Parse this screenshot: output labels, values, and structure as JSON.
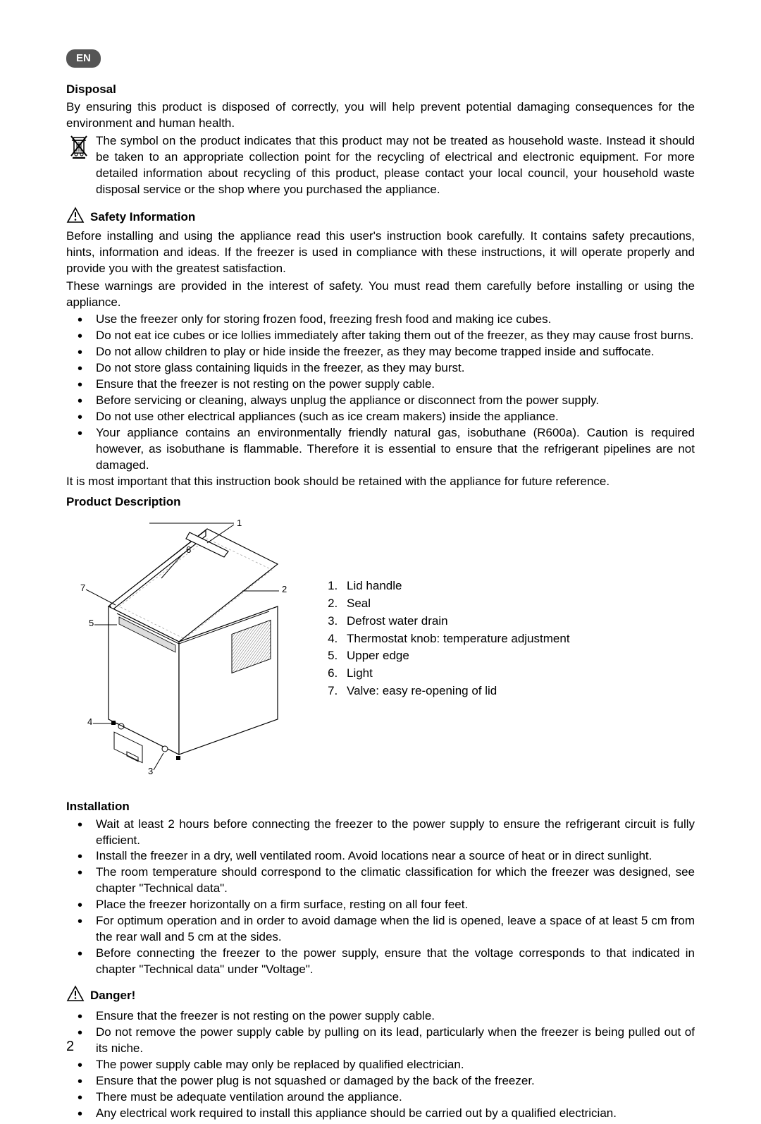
{
  "lang_badge": "EN",
  "disposal": {
    "title": "Disposal",
    "p1": "By ensuring this product is disposed of correctly, you will help prevent potential damaging consequences for the environment and human health.",
    "p2": "The symbol on the product indicates that this product may not be treated as household waste. Instead it should be taken to an appropriate collection point for the recycling of electrical and electronic equipment. For more detailed information about recycling of this product, please contact your local council, your household waste disposal service or the shop where you purchased the appliance."
  },
  "safety": {
    "title": "Safety Information",
    "p1": "Before installing and using the appliance read this user's instruction book carefully. It contains safety precautions, hints, information and ideas. If the freezer is used in compliance with these instructions, it will operate properly and provide you with the greatest satisfaction.",
    "p2": "These warnings are provided in the interest of safety. You must read them carefully before installing or using the appliance.",
    "bullets": [
      "Use the freezer only for storing frozen food, freezing fresh food and making ice cubes.",
      "Do not eat ice cubes or ice lollies immediately after taking them out of the freezer, as they may cause frost burns.",
      "Do not allow children to play or hide inside the freezer, as they may become trapped inside and suffocate.",
      "Do not store glass containing liquids in the freezer, as they may burst.",
      "Ensure that the freezer is not resting on the power supply cable.",
      "Before servicing or cleaning, always unplug the appliance or disconnect from the power supply.",
      "Do not use other electrical appliances (such as ice cream makers) inside the appliance.",
      "Your appliance contains an environmentally friendly natural gas, isobuthane (R600a). Caution is required however, as isobuthane is flammable. Therefore it is essential to ensure that the refrigerant pipelines are not damaged."
    ],
    "p3": "It is most important that this instruction book should be retained with the appliance for future reference."
  },
  "product": {
    "title": "Product Description",
    "legend": [
      "Lid handle",
      "Seal",
      "Defrost water drain",
      "Thermostat knob: temperature adjustment",
      "Upper edge",
      "Light",
      "Valve: easy re-opening of lid"
    ]
  },
  "installation": {
    "title": "Installation",
    "bullets": [
      "Wait at least 2 hours before connecting the freezer to the power supply to ensure the refrigerant circuit is fully efficient.",
      "Install the freezer in a dry, well ventilated room. Avoid locations near a source of heat or in direct sunlight.",
      "The room temperature should correspond to the climatic classification for which the freezer was designed, see chapter \"Technical data\".",
      "Place the freezer horizontally on a firm surface, resting on all four feet.",
      "For optimum operation and in order to avoid damage when the lid is opened, leave a space of at least 5 cm from the rear wall and 5 cm at the sides.",
      "Before connecting the freezer to the power supply, ensure that the voltage corresponds to that indicated in chapter \"Technical data\" under \"Voltage\"."
    ]
  },
  "danger": {
    "title": "Danger!",
    "bullets": [
      "Ensure that the freezer is not resting on the power supply cable.",
      "Do not remove the power supply cable by pulling on its lead, particularly when the freezer is being pulled out of its niche.",
      "The power supply cable may only be replaced by qualified electrician.",
      "Ensure that the power plug is not squashed or damaged by the back of the freezer.",
      "There must be adequate ventilation around the appliance.",
      "Any electrical work required to install this appliance should be carried out by a qualified electrician."
    ]
  },
  "page_number": "2",
  "colors": {
    "pill_bg": "#555555",
    "text": "#000000",
    "page_bg": "#ffffff"
  }
}
